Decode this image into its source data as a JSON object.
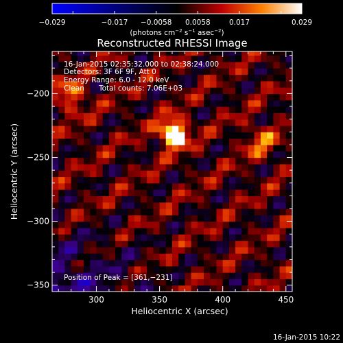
{
  "colorbar": {
    "ticks": [
      "−0.029",
      "−0.017",
      "−0.0058",
      "0.0058",
      "0.017",
      "0.029"
    ],
    "unit_main": "(photons cm",
    "unit_sup1": "−2",
    "unit_mid": " s",
    "unit_sup2": "−1",
    "unit_mid2": " asec",
    "unit_sup3": "−2",
    "unit_end": ")"
  },
  "chart_data": {
    "type": "heatmap",
    "title": "Reconstructed RHESSI Image",
    "xlabel": "Heliocentric X (arcsec)",
    "ylabel": "Heliocentric Y (arcsec)",
    "xlim": [
      265,
      455
    ],
    "ylim": [
      -355,
      -167
    ],
    "x_ticks": [
      300,
      350,
      400,
      450
    ],
    "y_ticks": [
      -350,
      -300,
      -250,
      -200
    ],
    "x_tick_labels": [
      "300",
      "350",
      "400",
      "450"
    ],
    "y_tick_labels": [
      "−350",
      "−300",
      "−250",
      "−200"
    ],
    "clim": [
      -0.029,
      0.029
    ],
    "colormap": "blue-purple-red-orange-yellow-white",
    "peak": {
      "x": 361,
      "y": -231
    },
    "annotations": [
      "16-Jan-2015 02:35:32.000 to 02:38:24.000",
      "Detectors: 3F 6F 9F, Att 0",
      "Energy Range: 6.0 - 12.0 keV",
      "Clean",
      "Total counts: 7.06E+03"
    ],
    "peak_label": "Position of Peak = [361,−231]",
    "footer_date": "16-Jan-2015 10:22"
  }
}
